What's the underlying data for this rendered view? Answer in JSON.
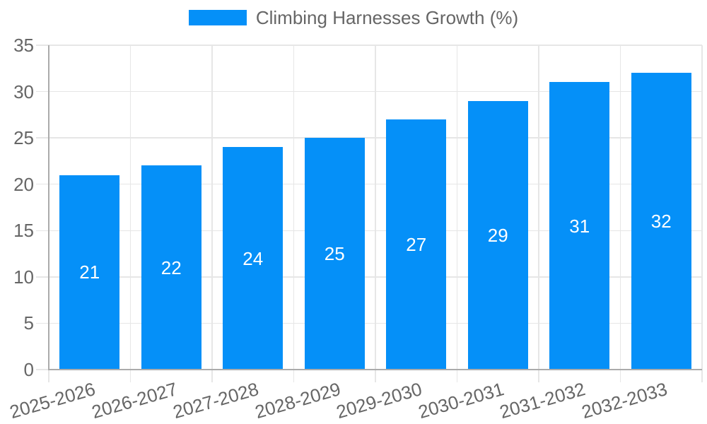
{
  "chart_data": {
    "type": "bar",
    "title": "Climbing Harnesses Growth (%)",
    "categories": [
      "2025-2026",
      "2026-2027",
      "2027-2028",
      "2028-2029",
      "2029-2030",
      "2030-2031",
      "2031-2032",
      "2032-2033"
    ],
    "values": [
      21,
      22,
      24,
      25,
      27,
      29,
      31,
      32
    ],
    "xlabel": "",
    "ylabel": "",
    "ylim": [
      0,
      35
    ],
    "yticks": [
      0,
      5,
      10,
      15,
      20,
      25,
      30,
      35
    ],
    "grid": true,
    "legend_position": "top",
    "x_label_rotation_deg": -16
  },
  "colors": {
    "bar": "#0590f8",
    "grid": "#e6e6e6",
    "axis": "#ababab",
    "tick_text": "#666666",
    "legend_text": "#666666",
    "value_label": "#ffffff",
    "background": "#ffffff"
  }
}
